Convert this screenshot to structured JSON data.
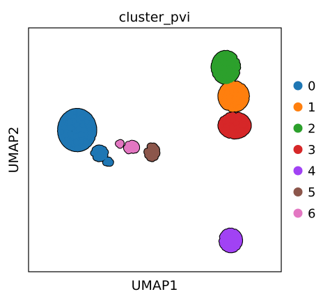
{
  "chart_data": {
    "type": "scatter",
    "title": "cluster_pvi",
    "xlabel": "UMAP1",
    "ylabel": "UMAP2",
    "grid": false,
    "legend_position": "right",
    "series": [
      {
        "name": "0",
        "color": "#1f77b4",
        "clusters": [
          {
            "center": [
              -9.0,
              1.2
            ],
            "spread": [
              1.7,
              1.6
            ],
            "n": 520
          },
          {
            "center": [
              -6.7,
              -0.8
            ],
            "spread": [
              0.6,
              0.45
            ],
            "n": 60
          },
          {
            "center": [
              -5.8,
              -1.6
            ],
            "spread": [
              0.25,
              0.2
            ],
            "n": 14
          }
        ]
      },
      {
        "name": "1",
        "color": "#ff7f0e",
        "clusters": [
          {
            "center": [
              7.1,
              4.1
            ],
            "spread": [
              1.3,
              1.1
            ],
            "n": 240
          }
        ]
      },
      {
        "name": "2",
        "color": "#2ca02c",
        "clusters": [
          {
            "center": [
              6.3,
              6.6
            ],
            "spread": [
              1.2,
              1.2
            ],
            "n": 240
          }
        ]
      },
      {
        "name": "3",
        "color": "#d62728",
        "clusters": [
          {
            "center": [
              7.2,
              1.6
            ],
            "spread": [
              1.4,
              0.9
            ],
            "n": 230
          }
        ]
      },
      {
        "name": "4",
        "color": "#a142f4",
        "clusters": [
          {
            "center": [
              6.8,
              -8.3
            ],
            "spread": [
              0.9,
              0.8
            ],
            "n": 140
          }
        ]
      },
      {
        "name": "5",
        "color": "#8c564b",
        "clusters": [
          {
            "center": [
              -1.3,
              -0.7
            ],
            "spread": [
              0.5,
              0.55
            ],
            "n": 60
          }
        ]
      },
      {
        "name": "6",
        "color": "#e377c2",
        "clusters": [
          {
            "center": [
              -3.4,
              -0.3
            ],
            "spread": [
              0.5,
              0.35
            ],
            "n": 60
          },
          {
            "center": [
              -4.6,
              0.0
            ],
            "spread": [
              0.15,
              0.12
            ],
            "n": 10
          }
        ]
      }
    ],
    "xlim": [
      -14,
      12
    ],
    "ylim": [
      -11,
      10
    ]
  }
}
